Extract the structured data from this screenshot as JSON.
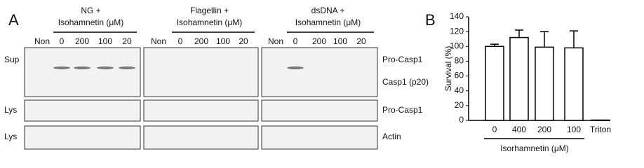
{
  "panel_a": {
    "label": "A",
    "groups": [
      {
        "title": [
          "NG +",
          "Isohamnetin (μM)"
        ],
        "lanes": [
          "Non",
          "0",
          "200",
          "100",
          "20"
        ]
      },
      {
        "title": [
          "Flagellin +",
          "Isohamnetin (μM)"
        ],
        "lanes": [
          "Non",
          "0",
          "200",
          "100",
          "20"
        ]
      },
      {
        "title": [
          "dsDNA +",
          "Isohamnetin (μM)"
        ],
        "lanes": [
          "Non",
          "0",
          "200",
          "100",
          "20"
        ]
      }
    ],
    "row_labels": [
      "Sup",
      "Lys",
      "Lys"
    ],
    "band_labels": [
      "Pro-Casp1",
      "Casp1 (p20)",
      "Pro-Casp1",
      "Actin"
    ]
  },
  "chart_data": {
    "type": "bar",
    "label": "B",
    "ylabel": "Survival (%)",
    "xlabel": "Isorhamnetin (μM)",
    "categories": [
      "0",
      "400",
      "200",
      "100",
      "Triton"
    ],
    "values": [
      100,
      112,
      99,
      98,
      0.5
    ],
    "errors": [
      3,
      10,
      21,
      23,
      null
    ],
    "color": "#ffffff",
    "ylim": [
      0,
      140
    ],
    "yticks": [
      0,
      20,
      40,
      60,
      80,
      100,
      120,
      140
    ]
  }
}
